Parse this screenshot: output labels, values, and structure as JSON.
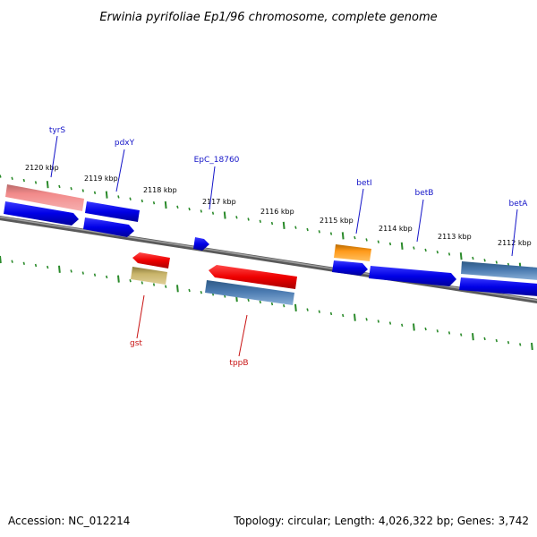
{
  "title": "Erwinia pyrifoliae Ep1/96 chromosome, complete genome",
  "footer": {
    "accession": "Accession: NC_012214",
    "summary": "Topology: circular; Length: 4,026,322 bp; Genes: 3,742"
  },
  "scale_labels": [
    "2120 kbp",
    "2119 kbp",
    "2118 kbp",
    "2117 kbp",
    "2116 kbp",
    "2115 kbp",
    "2114 kbp",
    "2113 kbp",
    "2112 kbp"
  ],
  "gene_labels": {
    "forward": [
      "tyrS",
      "pdxY",
      "EpC_18760",
      "betI",
      "betB",
      "betA"
    ],
    "reverse": [
      "gst",
      "tppB"
    ]
  },
  "colors": {
    "forward_label": "#1414c8",
    "reverse_label": "#c81414",
    "backbone": "#7a7a7a",
    "tick": "#2a8a2a",
    "cds_forward": "#0000ee",
    "cds_reverse": "#ee0000",
    "pink": "#f08080",
    "steel": "#4a7ab0",
    "orange": "#ff9a1a",
    "khaki": "#c8b46a"
  }
}
